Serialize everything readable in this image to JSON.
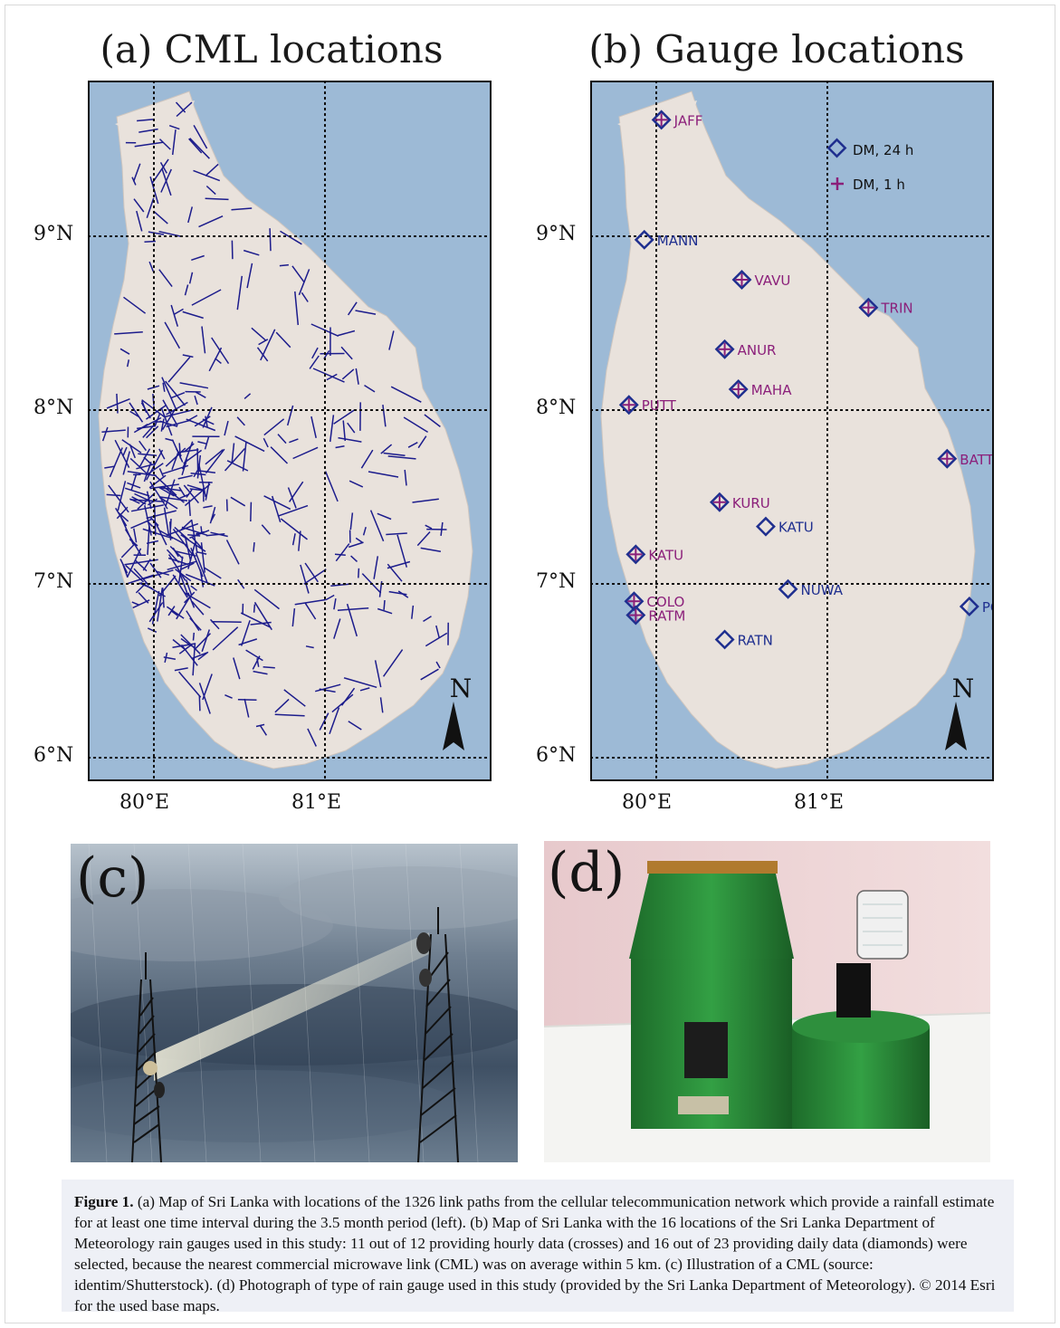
{
  "figure": {
    "panel_a": {
      "title": "(a) CML locations"
    },
    "panel_b": {
      "title": "(b) Gauge locations"
    },
    "panel_c": {
      "label": "(c)"
    },
    "panel_d": {
      "label": "(d)"
    },
    "lat_ticks": [
      "9°N",
      "8°N",
      "7°N",
      "6°N"
    ],
    "lon_ticks": [
      "80°E",
      "81°E"
    ],
    "north_arrow": "N",
    "legend": {
      "daily": "DM, 24 h",
      "hourly": "DM, 1 h"
    },
    "stations": [
      {
        "name": "JAFF",
        "lon": 80.03,
        "lat": 9.67,
        "hourly": true
      },
      {
        "name": "MANN",
        "lon": 79.93,
        "lat": 8.98,
        "hourly": false
      },
      {
        "name": "VAVU",
        "lon": 80.5,
        "lat": 8.75,
        "hourly": true
      },
      {
        "name": "TRIN",
        "lon": 81.24,
        "lat": 8.59,
        "hourly": true
      },
      {
        "name": "ANUR",
        "lon": 80.4,
        "lat": 8.35,
        "hourly": true
      },
      {
        "name": "MAHA",
        "lon": 80.48,
        "lat": 8.12,
        "hourly": true
      },
      {
        "name": "PUTT",
        "lon": 79.84,
        "lat": 8.03,
        "hourly": true
      },
      {
        "name": "BATT",
        "lon": 81.7,
        "lat": 7.72,
        "hourly": true
      },
      {
        "name": "KURU",
        "lon": 80.37,
        "lat": 7.47,
        "hourly": true
      },
      {
        "name": "KATU",
        "lon": 80.64,
        "lat": 7.33,
        "hourly": false
      },
      {
        "name": "KATU",
        "lon": 79.88,
        "lat": 7.17,
        "hourly": true
      },
      {
        "name": "NUWA",
        "lon": 80.77,
        "lat": 6.97,
        "hourly": false
      },
      {
        "name": "COLO",
        "lon": 79.87,
        "lat": 6.9,
        "hourly": true
      },
      {
        "name": "RATM",
        "lon": 79.88,
        "lat": 6.82,
        "hourly": true
      },
      {
        "name": "POTT",
        "lon": 81.83,
        "lat": 6.87,
        "hourly": false
      },
      {
        "name": "RATN",
        "lon": 80.4,
        "lat": 6.68,
        "hourly": false
      }
    ],
    "colors": {
      "sea": "#9dbad6",
      "land": "#e9e2dc",
      "cml": "#1c1c8c",
      "daily": "#1f2f8f",
      "hourly": "#8b1f7a"
    }
  },
  "caption": {
    "label": "Figure 1.",
    "text": " (a) Map of Sri Lanka with locations of the 1326 link paths from the cellular telecommunication network which provide a rainfall estimate for at least one time interval during the 3.5 month period (left). (b) Map of Sri Lanka with the 16 locations of the Sri Lanka Department of Meteorology rain gauges used in this study: 11 out of 12 providing hourly data (crosses) and 16 out of 23 providing daily data (diamonds) were selected, because the nearest commercial microwave link (CML) was on average within 5 km. (c) Illustration of a CML (source: identim/Shutterstock). (d) Photograph of type of rain gauge used in this study (provided by the Sri Lanka Department of Meteorology). © 2014 Esri for the used base maps."
  }
}
